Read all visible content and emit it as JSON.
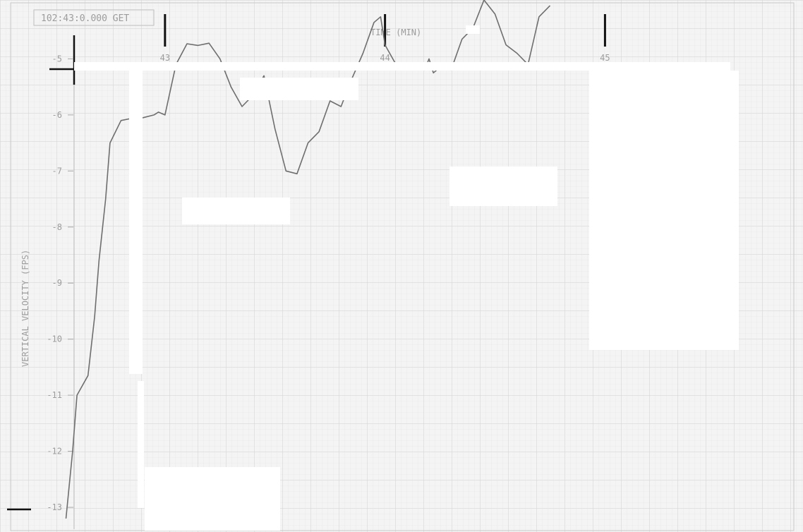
{
  "chart_data": {
    "type": "line",
    "title": "102:43:0.000 GET",
    "xlabel": "TIME (MIN)",
    "ylabel": "VERTICAL VELOCITY (FPS)",
    "x_ticks": [
      "43",
      "44",
      "45"
    ],
    "y_ticks": [
      "-5",
      "-6",
      "-7",
      "-8",
      "-9",
      "-10",
      "-11",
      "-12",
      "-13"
    ],
    "xlim": [
      42.25,
      45.9
    ],
    "ylim": [
      -13.44,
      -3.95
    ],
    "grid": true,
    "series": [
      {
        "points": [
          [
            42.55,
            -13.2
          ],
          [
            42.58,
            -12.0
          ],
          [
            42.6,
            -11.0
          ],
          [
            42.65,
            -10.65
          ],
          [
            42.68,
            -9.6
          ],
          [
            42.7,
            -8.6
          ],
          [
            42.73,
            -7.5
          ],
          [
            42.75,
            -6.5
          ],
          [
            42.8,
            -6.1
          ],
          [
            42.85,
            -6.06
          ],
          [
            42.9,
            -6.05
          ],
          [
            42.95,
            -6.0
          ],
          [
            42.97,
            -5.95
          ],
          [
            43.0,
            -6.0
          ],
          [
            43.05,
            -5.1
          ],
          [
            43.1,
            -4.73
          ],
          [
            43.15,
            -4.76
          ],
          [
            43.2,
            -4.72
          ],
          [
            43.25,
            -5.0
          ],
          [
            43.3,
            -5.5
          ],
          [
            43.35,
            -5.85
          ],
          [
            43.4,
            -5.65
          ],
          [
            43.45,
            -5.3
          ],
          [
            43.5,
            -6.25
          ],
          [
            43.55,
            -7.0
          ],
          [
            43.6,
            -7.05
          ],
          [
            43.65,
            -6.5
          ],
          [
            43.7,
            -6.3
          ],
          [
            43.75,
            -5.75
          ],
          [
            43.8,
            -5.85
          ],
          [
            43.85,
            -5.35
          ],
          [
            43.9,
            -4.9
          ],
          [
            43.95,
            -4.35
          ],
          [
            43.98,
            -4.25
          ],
          [
            44.0,
            -4.75
          ],
          [
            44.05,
            -5.1
          ],
          [
            44.1,
            -5.15
          ],
          [
            44.15,
            -5.15
          ],
          [
            44.18,
            -5.2
          ],
          [
            44.2,
            -5.0
          ],
          [
            44.22,
            -5.25
          ],
          [
            44.25,
            -5.15
          ],
          [
            44.3,
            -5.2
          ],
          [
            44.35,
            -4.65
          ],
          [
            44.4,
            -4.45
          ],
          [
            44.45,
            -3.95
          ],
          [
            44.5,
            -4.2
          ],
          [
            44.55,
            -4.75
          ],
          [
            44.6,
            -4.9
          ],
          [
            44.65,
            -5.1
          ],
          [
            44.7,
            -4.25
          ],
          [
            44.75,
            -4.05
          ]
        ]
      }
    ]
  }
}
